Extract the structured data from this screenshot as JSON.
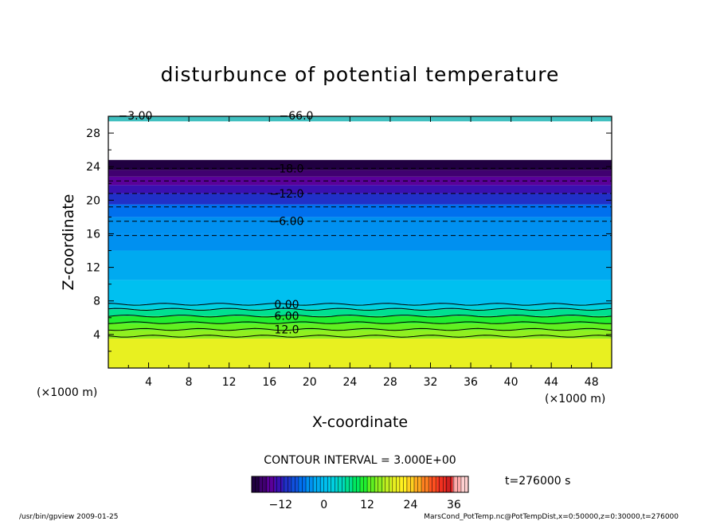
{
  "chart_data": {
    "type": "heatmap",
    "title": "disturbunce of potential temperature",
    "xlabel": "X-coordinate",
    "ylabel": "Z-coordinate",
    "x_unit": "(×1000 m)",
    "y_unit": "(×1000 m)",
    "xlim": [
      0,
      50
    ],
    "ylim": [
      0,
      30
    ],
    "x_ticks": [
      4,
      8,
      12,
      16,
      20,
      24,
      28,
      32,
      36,
      40,
      44,
      48
    ],
    "y_ticks": [
      4,
      8,
      12,
      16,
      20,
      24,
      28
    ],
    "contour_interval_text": "CONTOUR INTERVAL = 3.000E+00",
    "time_text": "t=276000 s",
    "colorbar": {
      "min": -20,
      "max": 40,
      "tick_values": [
        -12,
        0,
        12,
        24,
        36
      ],
      "tick_labels": [
        "−12",
        "0",
        "12",
        "24",
        "36"
      ],
      "colors": [
        "#200040",
        "#400070",
        "#5a009a",
        "#3a10b0",
        "#2030c8",
        "#1050dd",
        "#0070ee",
        "#0090f0",
        "#00aaf0",
        "#00c0f0",
        "#00d0e0",
        "#00d8c0",
        "#00e090",
        "#00e860",
        "#20ee30",
        "#60f020",
        "#90f020",
        "#c0f020",
        "#e8f020",
        "#fff020",
        "#ffd020",
        "#ffaa20",
        "#ff8020",
        "#ff5020",
        "#f03020",
        "#d02020",
        "#ffaaaa",
        "#ffd0d0"
      ]
    },
    "profile": [
      {
        "z0": 0,
        "z1": 3.5,
        "value": 20
      },
      {
        "z0": 3.5,
        "value": 16,
        "z1": 4.5
      },
      {
        "z0": 4.5,
        "value": 13,
        "z1": 5.3
      },
      {
        "z0": 5.3,
        "value": 10,
        "z1": 6.2
      },
      {
        "z0": 6.2,
        "value": 6,
        "z1": 7.0
      },
      {
        "z0": 7.0,
        "value": 3,
        "z1": 7.6
      },
      {
        "z0": 7.6,
        "value": 0,
        "z1": 10.5
      },
      {
        "z0": 10.5,
        "value": -1,
        "z1": 14.0
      },
      {
        "z0": 14.0,
        "value": -3,
        "z1": 16.0
      },
      {
        "z0": 16.0,
        "value": -5,
        "z1": 18.0
      },
      {
        "z0": 18.0,
        "value": -7,
        "z1": 19.5
      },
      {
        "z0": 19.5,
        "value": -10,
        "z1": 20.8
      },
      {
        "z0": 20.8,
        "value": -12,
        "z1": 21.8
      },
      {
        "z0": 21.8,
        "value": -15,
        "z1": 22.8
      },
      {
        "z0": 22.8,
        "value": -17,
        "z1": 23.6
      },
      {
        "z0": 23.6,
        "value": -19,
        "z1": 24.8
      }
    ],
    "contour_lines": [
      {
        "z": 3.8,
        "style": "solid",
        "label": ""
      },
      {
        "z": 4.6,
        "style": "solid",
        "label": "12.0"
      },
      {
        "z": 5.4,
        "style": "solid",
        "label": ""
      },
      {
        "z": 6.2,
        "style": "solid",
        "label": "6.00"
      },
      {
        "z": 7.0,
        "style": "solid",
        "label": ""
      },
      {
        "z": 7.6,
        "style": "solid",
        "label": "0.00"
      },
      {
        "z": 15.8,
        "style": "dashed",
        "label": ""
      },
      {
        "z": 17.5,
        "style": "dashed",
        "label": "−6.00"
      },
      {
        "z": 19.2,
        "style": "dashed",
        "label": ""
      },
      {
        "z": 20.8,
        "style": "dashed",
        "label": "−12.0"
      },
      {
        "z": 22.3,
        "style": "dashed",
        "label": ""
      },
      {
        "z": 23.8,
        "style": "dashed",
        "label": "−18.0"
      }
    ],
    "top_labels": [
      "−3.00",
      "−66.0"
    ]
  },
  "footer": {
    "left": "/usr/bin/gpview  2009-01-25",
    "right": "MarsCond_PotTemp.nc@PotTempDist,x=0:50000,z=0:30000,t=276000"
  }
}
